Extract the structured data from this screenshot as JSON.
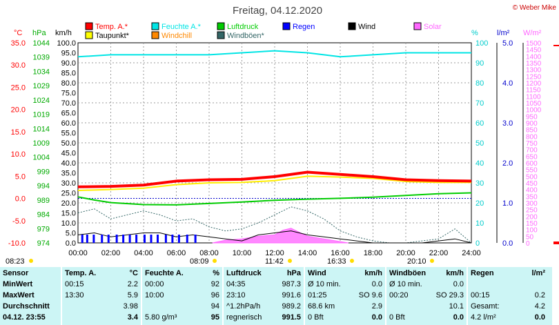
{
  "chart_data": {
    "type": "line",
    "title": "Freitag, 04.12.2020",
    "copyright": "© Weber Mike",
    "legend": [
      {
        "name": "Temp. A.*",
        "color": "#ff0000"
      },
      {
        "name": "Feuchte A.*",
        "color": "#00e5e5"
      },
      {
        "name": "Luftdruck",
        "color": "#00cc00"
      },
      {
        "name": "Regen",
        "color": "#0000ff"
      },
      {
        "name": "Wind",
        "color": "#000000"
      },
      {
        "name": "Solar",
        "color": "#ff66ff"
      },
      {
        "name": "Taupunkt*",
        "color": "#ffff00"
      },
      {
        "name": "Windchill",
        "color": "#ff8800"
      },
      {
        "name": "Windböen*",
        "color": "#336666"
      }
    ],
    "axes": {
      "temp": {
        "unit": "°C",
        "color": "#ff0000",
        "ticks": [
          "35.0",
          "30.0",
          "25.0",
          "20.0",
          "15.0",
          "10.0",
          "5.0",
          "0.0",
          "-5.0",
          "-10.0"
        ]
      },
      "pressure": {
        "unit": "hPa",
        "color": "#00aa00",
        "ticks": [
          "1044",
          "1039",
          "1034",
          "1029",
          "1024",
          "1019",
          "1014",
          "1009",
          "1004",
          "999",
          "994",
          "989",
          "984",
          "979",
          "974"
        ]
      },
      "wind": {
        "unit": "km/h",
        "color": "#000000",
        "ticks": [
          "100.0",
          "95.0",
          "90.0",
          "85.0",
          "80.0",
          "75.0",
          "70.0",
          "65.0",
          "60.0",
          "55.0",
          "50.0",
          "45.0",
          "40.0",
          "35.0",
          "30.0",
          "25.0",
          "20.0",
          "15.0",
          "10.0",
          "5.0",
          "0.0"
        ]
      },
      "humidity": {
        "unit": "%",
        "color": "#00cccc",
        "ticks": [
          "100",
          "90",
          "80",
          "70",
          "60",
          "50",
          "40",
          "30",
          "20",
          "10",
          "0"
        ]
      },
      "rain": {
        "unit": "l/m²",
        "color": "#0000cc",
        "ticks": [
          "5.0",
          "4.0",
          "3.0",
          "2.0",
          "1.0",
          "0.0"
        ]
      },
      "solar": {
        "unit": "W/m²",
        "color": "#ff66ff",
        "ticks": [
          "1500",
          "1450",
          "1400",
          "1350",
          "1300",
          "1250",
          "1200",
          "1150",
          "1100",
          "1050",
          "1000",
          "950",
          "900",
          "850",
          "800",
          "750",
          "700",
          "650",
          "600",
          "550",
          "500",
          "450",
          "400",
          "350",
          "300",
          "250",
          "200",
          "150",
          "100",
          "50",
          "0"
        ]
      },
      "x_ticks": [
        "00:00",
        "02:00",
        "04:00",
        "06:00",
        "08:00",
        "10:00",
        "12:00",
        "14:00",
        "16:00",
        "18:00",
        "20:00",
        "22:00",
        "24:00"
      ]
    },
    "sun_markers": [
      "08:23",
      "08:09",
      "11:42",
      "16:33",
      "20:10"
    ],
    "series": [
      {
        "name": "Temp. A.*",
        "x": [
          0,
          2,
          4,
          6,
          8,
          10,
          12,
          14,
          16,
          18,
          20,
          22,
          24
        ],
        "y": [
          2.6,
          2.7,
          3.0,
          3.9,
          4.2,
          4.3,
          4.9,
          5.9,
          5.4,
          4.9,
          4.2,
          4.0,
          3.9
        ]
      },
      {
        "name": "Taupunkt*",
        "x": [
          0,
          2,
          4,
          6,
          8,
          10,
          12,
          14,
          16,
          18,
          20,
          22,
          24
        ],
        "y": [
          1.8,
          2.0,
          2.3,
          3.1,
          3.5,
          3.6,
          4.0,
          5.0,
          4.8,
          4.5,
          3.8,
          3.6,
          3.6
        ]
      },
      {
        "name": "Feuchte A.*",
        "x": [
          0,
          2,
          4,
          6,
          8,
          10,
          12,
          14,
          16,
          18,
          20,
          22,
          24
        ],
        "y": [
          93,
          94,
          94,
          94,
          94,
          95,
          96,
          95,
          93,
          94,
          95,
          95,
          95
        ]
      },
      {
        "name": "Luftdruck",
        "x": [
          0,
          1,
          2,
          4,
          6,
          8,
          10,
          12,
          14,
          16,
          18,
          20,
          22,
          24
        ],
        "y": [
          990.1,
          989.0,
          988.1,
          987.4,
          987.3,
          987.8,
          988.3,
          988.9,
          989.3,
          989.6,
          990.0,
          990.6,
          991.2,
          991.5
        ]
      },
      {
        "name": "Wind",
        "x": [
          0,
          1,
          2,
          3,
          4,
          5,
          6,
          7,
          8,
          9,
          10,
          11,
          12,
          13,
          14,
          15,
          16,
          17,
          18,
          19,
          20,
          21,
          22,
          23,
          24
        ],
        "y": [
          4,
          5,
          3,
          4,
          5,
          5,
          3,
          4,
          3,
          2,
          1,
          4,
          5,
          6,
          4,
          3,
          2,
          1,
          0,
          0,
          0,
          0,
          1,
          2,
          0
        ]
      },
      {
        "name": "Windböen*",
        "x": [
          0,
          1,
          2,
          3,
          4,
          5,
          6,
          7,
          8,
          9,
          10,
          11,
          12,
          13,
          14,
          15,
          16,
          17,
          18,
          19,
          20,
          21,
          22,
          23,
          24
        ],
        "y": [
          15,
          17,
          12,
          14,
          16,
          14,
          11,
          12,
          8,
          6,
          7,
          10,
          14,
          18,
          16,
          12,
          6,
          3,
          1,
          0,
          0,
          1,
          2,
          7,
          0
        ]
      },
      {
        "name": "Solar",
        "x": [
          8.2,
          9,
          10,
          11,
          12,
          12.5,
          13,
          13.5,
          14,
          15,
          16,
          16.5
        ],
        "y": [
          0,
          20,
          30,
          50,
          60,
          95,
          110,
          80,
          50,
          30,
          10,
          0
        ]
      }
    ]
  },
  "table": {
    "headers": {
      "sensor": "Sensor",
      "temp": "Temp. A.",
      "temp_unit": "°C",
      "hum": "Feuchte A.",
      "hum_unit": "%",
      "press": "Luftdruck",
      "press_unit": "hPa",
      "wind": "Wind",
      "wind_unit": "km/h",
      "gust": "Windböen",
      "gust_unit": "km/h",
      "rain": "Regen",
      "rain_unit": "l/m²"
    },
    "rows": [
      {
        "label": "MinWert",
        "temp_t": "00:15",
        "temp_v": "2.2",
        "hum_t": "00:00",
        "hum_v": "92",
        "press_t": "04:35",
        "press_v": "987.3",
        "wind_t": "Ø 10 min.",
        "wind_v": "0.0",
        "gust_t": "Ø 10 min.",
        "gust_v": "0.0",
        "rain_t": "",
        "rain_v": ""
      },
      {
        "label": "MaxWert",
        "temp_t": "13:30",
        "temp_v": "5.9",
        "hum_t": "10:00",
        "hum_v": "96",
        "press_t": "23:10",
        "press_v": "991.6",
        "wind_t": "01:25",
        "wind_m": "SO 9.6",
        "wind_v": "",
        "gust_t": "00:20",
        "gust_m": "SO 29.3",
        "gust_v": "",
        "rain_t": "00:15",
        "rain_v": "0.2"
      },
      {
        "label": "Durchschnitt",
        "temp_t": "",
        "temp_v": "3.98",
        "hum_t": "",
        "hum_v": "94",
        "press_t": "^1.2hPa/h",
        "press_v": "989.2",
        "wind_t": "68.6 km",
        "wind_v": "2.9",
        "gust_t": "",
        "gust_v": "10.1",
        "rain_t": "Gesamt:",
        "rain_v": "4.2"
      },
      {
        "label": "04.12. 23:55",
        "temp_t": "",
        "temp_v": "3.4",
        "hum_t": "5.80 g/m³",
        "hum_v": "95",
        "press_t": "regnerisch",
        "press_v": "991.5",
        "wind_t": "0 Bft",
        "wind_v": "0.0",
        "gust_t": "0 Bft",
        "gust_v": "0.0",
        "rain_t": "4.2 l/m²",
        "rain_v": "0.0"
      }
    ]
  }
}
